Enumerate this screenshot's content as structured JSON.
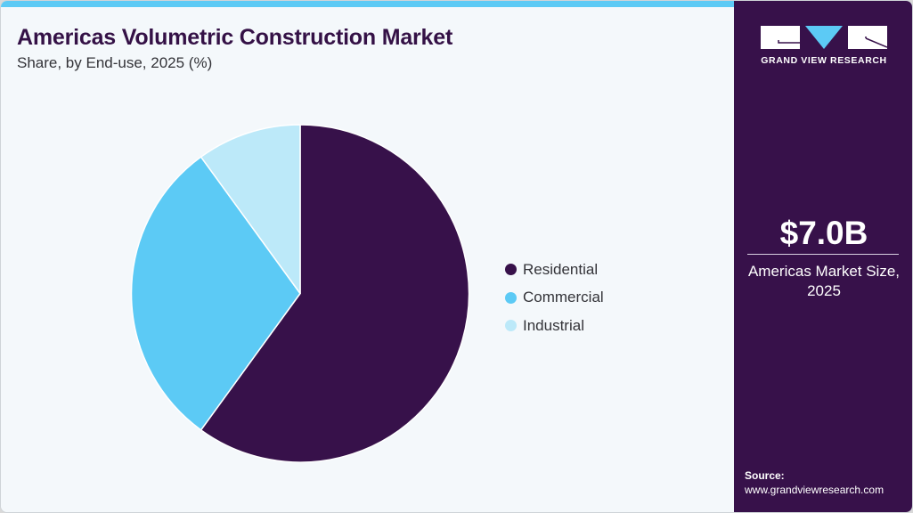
{
  "header": {
    "title": "Americas Volumetric Construction Market",
    "subtitle": "Share, by End-use, 2025 (%)"
  },
  "colors": {
    "residential": "#37114a",
    "commercial": "#5ccaf5",
    "industrial": "#bce9f9",
    "accent_bar": "#5ccaf5",
    "sidebar_bg": "#37114a",
    "background": "#f4f8fb"
  },
  "legend": [
    {
      "label": "Residential",
      "color": "#37114a"
    },
    {
      "label": "Commercial",
      "color": "#5ccaf5"
    },
    {
      "label": "Industrial",
      "color": "#bce9f9"
    }
  ],
  "sidebar": {
    "logo_text": "GRAND VIEW RESEARCH",
    "market_value": "$7.0B",
    "market_label_line1": "Americas Market Size,",
    "market_label_line2": "2025",
    "source_label": "Source:",
    "source_url": "www.grandviewresearch.com"
  },
  "chart_data": {
    "type": "pie",
    "title": "Americas Volumetric Construction Market",
    "subtitle": "Share, by End-use, 2025 (%)",
    "categories": [
      "Residential",
      "Commercial",
      "Industrial"
    ],
    "values": [
      60,
      30,
      10
    ],
    "colors": [
      "#37114a",
      "#5ccaf5",
      "#bce9f9"
    ],
    "start_angle_deg": 0,
    "direction": "clockwise",
    "legend_position": "right",
    "data_labels": false
  }
}
